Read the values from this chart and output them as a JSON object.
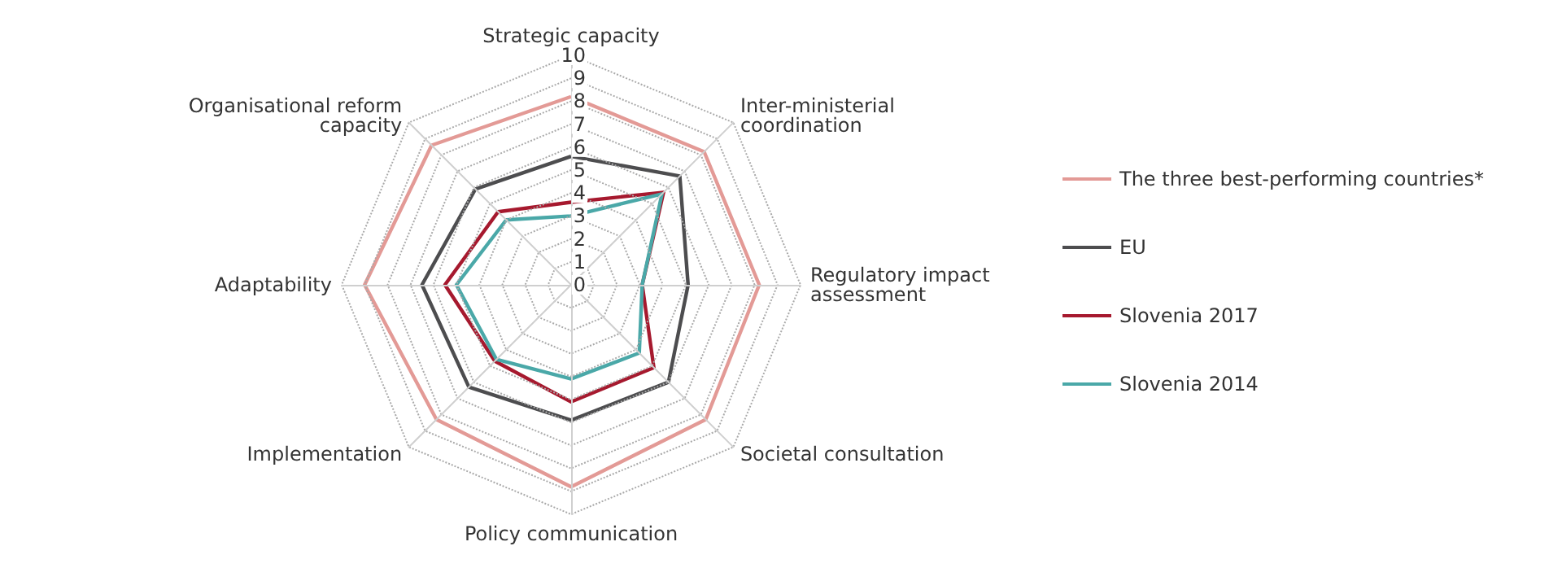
{
  "chart_data": {
    "type": "radar",
    "categories": [
      "Strategic capacity",
      "Inter-ministerial\ncoordination",
      "Regulatory impact\nassessment",
      "Societal consultation",
      "Policy communication",
      "Implementation",
      "Adaptability",
      "Organisational reform\ncapacity"
    ],
    "ylim": [
      0,
      10
    ],
    "yticks": [
      0,
      1,
      2,
      3,
      4,
      5,
      6,
      7,
      8,
      9,
      10
    ],
    "legend": "right",
    "marker": "none",
    "line_style": "solid",
    "grid": true,
    "series": [
      {
        "name": "The three best-performing countries*",
        "color": "#e39a96",
        "values": [
          8.2,
          8.2,
          8.2,
          8.3,
          8.8,
          8.3,
          9.0,
          8.6
        ]
      },
      {
        "name": "EU",
        "color": "#4d4d4f",
        "values": [
          5.6,
          6.7,
          5.1,
          6.0,
          5.9,
          6.3,
          6.5,
          5.9
        ]
      },
      {
        "name": "Slovenia 2017",
        "color": "#a6192e",
        "values": [
          3.6,
          5.7,
          3.1,
          5.1,
          5.1,
          4.7,
          5.5,
          4.5
        ]
      },
      {
        "name": "Slovenia 2014",
        "color": "#4aa8a8",
        "values": [
          3.0,
          5.6,
          3.1,
          4.2,
          4.1,
          4.6,
          5.0,
          4.0
        ]
      }
    ]
  }
}
